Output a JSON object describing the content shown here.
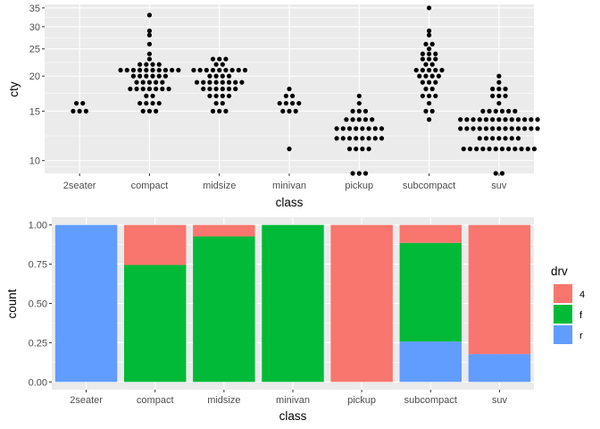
{
  "chart_data": [
    {
      "type": "scatter",
      "subtype": "dotplot-beeswarm",
      "xlabel": "class",
      "ylabel": "cty",
      "categories": [
        "2seater",
        "compact",
        "midsize",
        "minivan",
        "pickup",
        "subcompact",
        "suv"
      ],
      "yticks": [
        10,
        15,
        20,
        25,
        30,
        35
      ],
      "yscale": "log10",
      "ylim": [
        9,
        36
      ],
      "grid": true,
      "background": "#ebebeb",
      "point_color": "#000000",
      "points": {
        "2seater": [
          15,
          16,
          15,
          16,
          15
        ],
        "compact": [
          18,
          21,
          20,
          21,
          16,
          18,
          18,
          18,
          16,
          20,
          19,
          15,
          17,
          17,
          15,
          21,
          19,
          22,
          18,
          18,
          19,
          21,
          21,
          21,
          28,
          26,
          18,
          20,
          21,
          22,
          23,
          24,
          33,
          21,
          19,
          21,
          20,
          15,
          19,
          20,
          21,
          22,
          16,
          20,
          22,
          16,
          29
        ],
        "midsize": [
          18,
          16,
          20,
          19,
          15,
          17,
          17,
          15,
          15,
          21,
          18,
          18,
          19,
          19,
          18,
          20,
          21,
          17,
          21,
          22,
          23,
          21,
          21,
          23,
          19,
          19,
          18,
          21,
          19,
          20,
          21,
          22,
          18,
          17,
          16,
          19,
          21,
          19,
          20,
          21,
          23
        ],
        "minivan": [
          16,
          16,
          15,
          11,
          15,
          17,
          17,
          16,
          18,
          16,
          15
        ],
        "pickup": [
          15,
          14,
          11,
          14,
          12,
          12,
          12,
          12,
          13,
          13,
          13,
          14,
          11,
          14,
          11,
          12,
          9,
          13,
          15,
          15,
          13,
          12,
          9,
          13,
          12,
          9,
          16,
          17,
          14,
          11,
          13,
          12,
          13
        ],
        "subcompact": [
          18,
          21,
          24,
          29,
          35,
          28,
          21,
          20,
          19,
          21,
          17,
          18,
          17,
          14,
          15,
          19,
          26,
          25,
          24,
          20,
          23,
          21,
          23,
          26,
          15,
          19,
          20,
          22,
          17,
          16,
          23,
          24,
          20,
          21,
          22
        ],
        "suv": [
          14,
          11,
          14,
          13,
          12,
          16,
          15,
          13,
          12,
          11,
          11,
          13,
          11,
          14,
          15,
          11,
          12,
          13,
          13,
          9,
          14,
          11,
          11,
          12,
          14,
          13,
          17,
          14,
          11,
          15,
          11,
          11,
          9,
          14,
          13,
          12,
          13,
          12,
          15,
          14,
          13,
          17,
          12,
          11,
          14,
          15,
          14,
          13,
          20,
          18,
          17,
          13,
          14,
          15,
          13,
          18,
          19,
          14,
          13,
          14,
          11,
          18
        ]
      }
    },
    {
      "type": "bar",
      "subtype": "stacked-fill",
      "xlabel": "class",
      "ylabel": "count",
      "categories": [
        "2seater",
        "compact",
        "midsize",
        "minivan",
        "pickup",
        "subcompact",
        "suv"
      ],
      "yticks": [
        "0.00",
        "0.25",
        "0.50",
        "0.75",
        "1.00"
      ],
      "ylim": [
        0,
        1
      ],
      "grid": true,
      "background": "#ebebeb",
      "legend": {
        "title": "drv",
        "placement": "right"
      },
      "series": [
        {
          "name": "r",
          "color": "#619cff",
          "values": [
            1.0,
            0.0,
            0.0,
            0.0,
            0.0,
            0.2571,
            0.1774
          ]
        },
        {
          "name": "f",
          "color": "#00ba38",
          "values": [
            0.0,
            0.7447,
            0.9268,
            1.0,
            0.0,
            0.6286,
            0.0
          ]
        },
        {
          "name": "4",
          "color": "#f8766d",
          "values": [
            0.0,
            0.2553,
            0.0732,
            0.0,
            1.0,
            0.1143,
            0.8226
          ]
        }
      ],
      "legend_order": [
        "4",
        "f",
        "r"
      ]
    }
  ]
}
